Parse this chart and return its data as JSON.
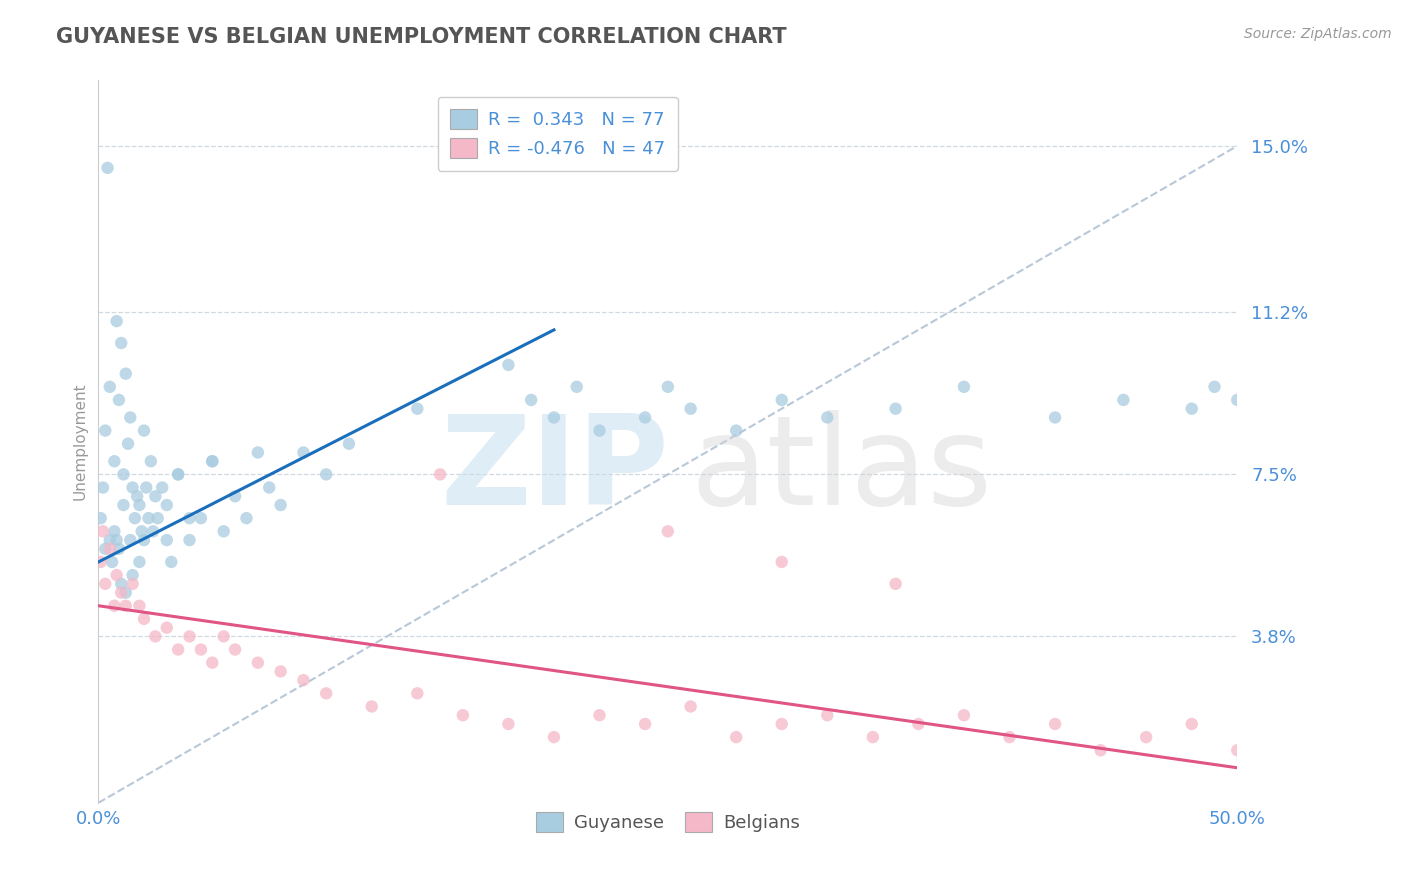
{
  "title": "GUYANESE VS BELGIAN UNEMPLOYMENT CORRELATION CHART",
  "source": "Source: ZipAtlas.com",
  "ylabel": "Unemployment",
  "xlim": [
    0,
    50
  ],
  "ylim": [
    0,
    16.5
  ],
  "yticks": [
    3.8,
    7.5,
    11.2,
    15.0
  ],
  "ytick_labels": [
    "3.8%",
    "7.5%",
    "11.2%",
    "15.0%"
  ],
  "xtick_labels": [
    "0.0%",
    "50.0%"
  ],
  "legend_blue_label": "R =  0.343   N = 77",
  "legend_pink_label": "R = -0.476   N = 47",
  "guyanese_color": "#a8cce0",
  "belgian_color": "#f5b8c8",
  "trend_blue_color": "#1a6fbd",
  "trend_pink_color": "#e05585",
  "trend_gray_color": "#b8c8d8",
  "background_color": "#ffffff",
  "title_color": "#555555",
  "axis_label_color": "#4a90d9",
  "grid_color": "#d0d8e0",
  "blue_line_x": [
    0,
    20
  ],
  "blue_line_y": [
    5.5,
    10.8
  ],
  "pink_line_x": [
    0,
    50
  ],
  "pink_line_y": [
    4.5,
    0.8
  ],
  "gray_line_x": [
    0,
    50
  ],
  "gray_line_y": [
    0,
    15.0
  ],
  "guyanese_x": [
    0.1,
    0.2,
    0.3,
    0.3,
    0.4,
    0.5,
    0.5,
    0.6,
    0.7,
    0.7,
    0.8,
    0.8,
    0.9,
    0.9,
    1.0,
    1.0,
    1.1,
    1.1,
    1.2,
    1.2,
    1.3,
    1.4,
    1.4,
    1.5,
    1.5,
    1.6,
    1.7,
    1.8,
    1.8,
    1.9,
    2.0,
    2.0,
    2.1,
    2.2,
    2.3,
    2.4,
    2.5,
    2.6,
    2.8,
    3.0,
    3.2,
    3.5,
    4.0,
    4.5,
    5.0,
    5.5,
    6.0,
    7.0,
    8.0,
    10.0,
    11.0,
    14.0,
    18.0,
    19.0,
    20.0,
    21.0,
    22.0,
    24.0,
    25.0,
    26.0,
    28.0,
    30.0,
    32.0,
    35.0,
    38.0,
    42.0,
    45.0,
    48.0,
    49.0,
    50.0,
    3.0,
    3.5,
    4.0,
    5.0,
    6.5,
    7.5,
    9.0
  ],
  "guyanese_y": [
    6.5,
    7.2,
    5.8,
    8.5,
    14.5,
    6.0,
    9.5,
    5.5,
    7.8,
    6.2,
    6.0,
    11.0,
    5.8,
    9.2,
    5.0,
    10.5,
    6.8,
    7.5,
    4.8,
    9.8,
    8.2,
    6.0,
    8.8,
    5.2,
    7.2,
    6.5,
    7.0,
    5.5,
    6.8,
    6.2,
    8.5,
    6.0,
    7.2,
    6.5,
    7.8,
    6.2,
    7.0,
    6.5,
    7.2,
    6.0,
    5.5,
    7.5,
    6.0,
    6.5,
    7.8,
    6.2,
    7.0,
    8.0,
    6.8,
    7.5,
    8.2,
    9.0,
    10.0,
    9.2,
    8.8,
    9.5,
    8.5,
    8.8,
    9.5,
    9.0,
    8.5,
    9.2,
    8.8,
    9.0,
    9.5,
    8.8,
    9.2,
    9.0,
    9.5,
    9.2,
    6.8,
    7.5,
    6.5,
    7.8,
    6.5,
    7.2,
    8.0
  ],
  "belgian_x": [
    0.1,
    0.2,
    0.3,
    0.5,
    0.7,
    0.8,
    1.0,
    1.2,
    1.5,
    1.8,
    2.0,
    2.5,
    3.0,
    3.5,
    4.0,
    4.5,
    5.0,
    5.5,
    6.0,
    7.0,
    8.0,
    9.0,
    10.0,
    12.0,
    14.0,
    16.0,
    18.0,
    20.0,
    22.0,
    24.0,
    26.0,
    28.0,
    30.0,
    32.0,
    34.0,
    36.0,
    38.0,
    40.0,
    42.0,
    44.0,
    46.0,
    48.0,
    50.0,
    25.0,
    30.0,
    35.0,
    15.0
  ],
  "belgian_y": [
    5.5,
    6.2,
    5.0,
    5.8,
    4.5,
    5.2,
    4.8,
    4.5,
    5.0,
    4.5,
    4.2,
    3.8,
    4.0,
    3.5,
    3.8,
    3.5,
    3.2,
    3.8,
    3.5,
    3.2,
    3.0,
    2.8,
    2.5,
    2.2,
    2.5,
    2.0,
    1.8,
    1.5,
    2.0,
    1.8,
    2.2,
    1.5,
    1.8,
    2.0,
    1.5,
    1.8,
    2.0,
    1.5,
    1.8,
    1.2,
    1.5,
    1.8,
    1.2,
    6.2,
    5.5,
    5.0,
    7.5
  ]
}
